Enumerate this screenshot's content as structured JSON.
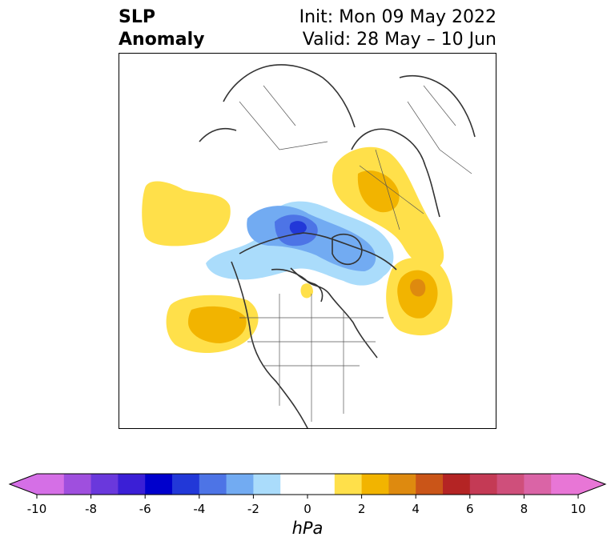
{
  "header": {
    "title_line1": "SLP",
    "title_line2": "Anomaly",
    "init": "Init: Mon 09 May 2022",
    "valid": "Valid: 28 May – 10 Jun"
  },
  "map": {
    "projection": "north-polar-stereographic",
    "field": "sea level pressure anomaly",
    "features": [
      {
        "kind": "high",
        "region": "North Pacific (west)",
        "max_hPa": 1
      },
      {
        "kind": "high",
        "region": "Gulf of Alaska / NE Pacific",
        "max_hPa": 2
      },
      {
        "kind": "low",
        "region": "Central Arctic",
        "min_hPa": -5
      },
      {
        "kind": "high",
        "region": "Western Siberia",
        "max_hPa": 2
      },
      {
        "kind": "high",
        "region": "North Atlantic",
        "max_hPa": 4
      },
      {
        "kind": "high",
        "region": "Hudson Bay",
        "max_hPa": 1
      }
    ]
  },
  "colorbar": {
    "unit": "hPa",
    "ticks": [
      "-10",
      "-8",
      "-6",
      "-4",
      "-2",
      "0",
      "2",
      "4",
      "6",
      "8",
      "10"
    ],
    "levels": [
      -10,
      -9,
      -8,
      -7,
      -6,
      -5,
      -4,
      -3,
      -2,
      -1,
      1,
      2,
      3,
      4,
      5,
      6,
      7,
      8,
      9,
      10
    ],
    "colors": [
      "#d56fe6",
      "#9f4fde",
      "#6a38dc",
      "#3b1fd6",
      "#0000cc",
      "#2238d8",
      "#4d74e6",
      "#72abf2",
      "#aadcfb",
      "#ffffff",
      "#ffe04a",
      "#f2b400",
      "#de8a0f",
      "#ca5518",
      "#b42424",
      "#c43a55",
      "#cf4f7b",
      "#da64a6",
      "#e876d6"
    ],
    "extend_low_color": "#d56fe6",
    "extend_high_color": "#e876d6"
  }
}
